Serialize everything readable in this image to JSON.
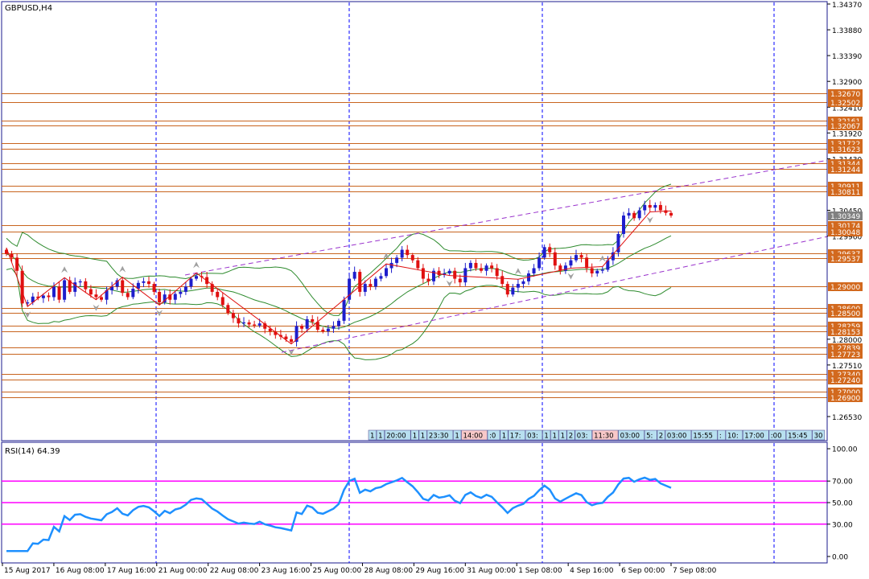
{
  "symbol_label": "GBPUSD,H4",
  "rsi_label": "RSI(14) 64.39",
  "colors": {
    "background": "#ffffff",
    "frame": "#1a1a8c",
    "grid": "#0000ff",
    "level": "#c8641e",
    "level_tag": "#d2691e",
    "bull": "#1e1ecc",
    "bear": "#e01010",
    "bands": "#2e8b2e",
    "channel": "#9932cc",
    "zigzag": "#e01010",
    "fractal": "#a0a0a0",
    "rsi_line": "#1e90ff",
    "rsi_level": "#ff00ff",
    "session_box": "#b8e0f0",
    "session_box_red": "#f8c8c8"
  },
  "price_axis": {
    "min": 1.2603,
    "max": 1.3437,
    "ticks": [
      "1.34370",
      "1.33880",
      "1.33390",
      "1.32900",
      "1.32410",
      "1.31920",
      "1.31430",
      "1.30450",
      "1.29960",
      "1.28000",
      "1.27510",
      "1.26530"
    ]
  },
  "price_levels": [
    {
      "value": 1.3267,
      "label": "1.32670"
    },
    {
      "value": 1.32502,
      "label": "1.32502"
    },
    {
      "value": 1.32161,
      "label": "1.32161"
    },
    {
      "value": 1.32067,
      "label": "1.32067"
    },
    {
      "value": 1.31722,
      "label": "1.31722"
    },
    {
      "value": 1.31623,
      "label": "1.31623"
    },
    {
      "value": 1.31344,
      "label": "1.31344"
    },
    {
      "value": 1.31244,
      "label": "1.31244"
    },
    {
      "value": 1.30911,
      "label": "1.30911"
    },
    {
      "value": 1.30811,
      "label": "1.30811"
    },
    {
      "value": 1.30174,
      "label": "1.30174"
    },
    {
      "value": 1.30048,
      "label": "1.30048"
    },
    {
      "value": 1.29637,
      "label": "1.29637"
    },
    {
      "value": 1.29537,
      "label": "1.29537"
    },
    {
      "value": 1.29,
      "label": "1.29000"
    },
    {
      "value": 1.286,
      "label": "1.28600"
    },
    {
      "value": 1.285,
      "label": "1.28500"
    },
    {
      "value": 1.28259,
      "label": "1.28259"
    },
    {
      "value": 1.28153,
      "label": "1.28153"
    },
    {
      "value": 1.27839,
      "label": "1.27839"
    },
    {
      "value": 1.27723,
      "label": "1.27723"
    },
    {
      "value": 1.2734,
      "label": "1.27340"
    },
    {
      "value": 1.2724,
      "label": "1.27240"
    },
    {
      "value": 1.27,
      "label": "1.27000"
    },
    {
      "value": 1.269,
      "label": "1.26900"
    }
  ],
  "current_price": {
    "value": 1.30349,
    "label": "1.30349"
  },
  "session_labels": [
    {
      "text": "1",
      "red": false
    },
    {
      "text": "1",
      "red": false
    },
    {
      "text": "20:00",
      "red": false
    },
    {
      "text": "1",
      "red": false
    },
    {
      "text": "1",
      "red": false
    },
    {
      "text": "23:30",
      "red": false
    },
    {
      "text": "1",
      "red": false
    },
    {
      "text": "14:00",
      "red": true
    },
    {
      "text": ":0",
      "red": false
    },
    {
      "text": "1",
      "red": false
    },
    {
      "text": "17:",
      "red": false
    },
    {
      "text": "03:",
      "red": false
    },
    {
      "text": "1",
      "red": false
    },
    {
      "text": "1",
      "red": false
    },
    {
      "text": "1",
      "red": false
    },
    {
      "text": "2",
      "red": false
    },
    {
      "text": "03:",
      "red": false
    },
    {
      "text": "11:30",
      "red": true
    },
    {
      "text": "03:00",
      "red": false
    },
    {
      "text": "5:",
      "red": false
    },
    {
      "text": "2",
      "red": false
    },
    {
      "text": "03:00",
      "red": false
    },
    {
      "text": "15:55",
      "red": false
    },
    {
      "text": ":",
      "red": false
    },
    {
      "text": "10:",
      "red": false
    },
    {
      "text": "17:00",
      "red": false
    },
    {
      "text": ":00",
      "red": false
    },
    {
      "text": "15:45",
      "red": false
    },
    {
      "text": "30",
      "red": false
    }
  ],
  "rsi_axis": {
    "ticks": [
      {
        "value": 100,
        "label": "100.00"
      },
      {
        "value": 70,
        "label": "70.00"
      },
      {
        "value": 50,
        "label": "50.00"
      },
      {
        "value": 30,
        "label": "30.00"
      },
      {
        "value": 0,
        "label": "0.00"
      }
    ],
    "levels": [
      70,
      50,
      30
    ]
  },
  "time_axis": {
    "labels": [
      "15 Aug 2017",
      "16 Aug 08:00",
      "17 Aug 16:00",
      "21 Aug 00:00",
      "22 Aug 08:00",
      "23 Aug 16:00",
      "25 Aug 00:00",
      "28 Aug 08:00",
      "29 Aug 16:00",
      "31 Aug 00:00",
      "1 Sep 08:00",
      "4 Sep 16:00",
      "6 Sep 00:00",
      "7 Sep 08:00"
    ]
  },
  "chart_data": {
    "type": "candlestick",
    "title": "GBPUSD,H4",
    "symbol": "GBPUSD",
    "timeframe": "H4",
    "first_bar": "15 Aug 2017",
    "last_bar": "7 Sep 08:00",
    "closes": [
      1.2962,
      1.2955,
      1.293,
      1.2868,
      1.287,
      1.2881,
      1.2878,
      1.2883,
      1.288,
      1.29,
      1.2875,
      1.2912,
      1.289,
      1.2908,
      1.291,
      1.2895,
      1.2885,
      1.288,
      1.2875,
      1.2893,
      1.29,
      1.2912,
      1.2888,
      1.288,
      1.2896,
      1.2907,
      1.291,
      1.2905,
      1.289,
      1.287,
      1.2885,
      1.2875,
      1.2886,
      1.289,
      1.29,
      1.2915,
      1.292,
      1.2918,
      1.2905,
      1.289,
      1.288,
      1.2865,
      1.285,
      1.284,
      1.283,
      1.2832,
      1.2828,
      1.2826,
      1.283,
      1.282,
      1.2815,
      1.2808,
      1.2805,
      1.28,
      1.2795,
      1.2825,
      1.282,
      1.2838,
      1.2833,
      1.2818,
      1.2815,
      1.282,
      1.2825,
      1.2835,
      1.2875,
      1.2915,
      1.2928,
      1.289,
      1.2905,
      1.29,
      1.2915,
      1.292,
      1.2935,
      1.2945,
      1.2955,
      1.297,
      1.296,
      1.295,
      1.2935,
      1.2915,
      1.291,
      1.293,
      1.2922,
      1.2925,
      1.293,
      1.2915,
      1.2908,
      1.2935,
      1.2945,
      1.2935,
      1.293,
      1.294,
      1.2935,
      1.292,
      1.2905,
      1.2885,
      1.2898,
      1.2905,
      1.291,
      1.2925,
      1.2935,
      1.2955,
      1.2975,
      1.2965,
      1.294,
      1.293,
      1.294,
      1.295,
      1.296,
      1.2955,
      1.2935,
      1.2925,
      1.293,
      1.2932,
      1.295,
      1.2965,
      1.3,
      1.3035,
      1.304,
      1.303,
      1.3045,
      1.3055,
      1.305,
      1.3055,
      1.3045,
      1.304,
      1.3035
    ]
  }
}
